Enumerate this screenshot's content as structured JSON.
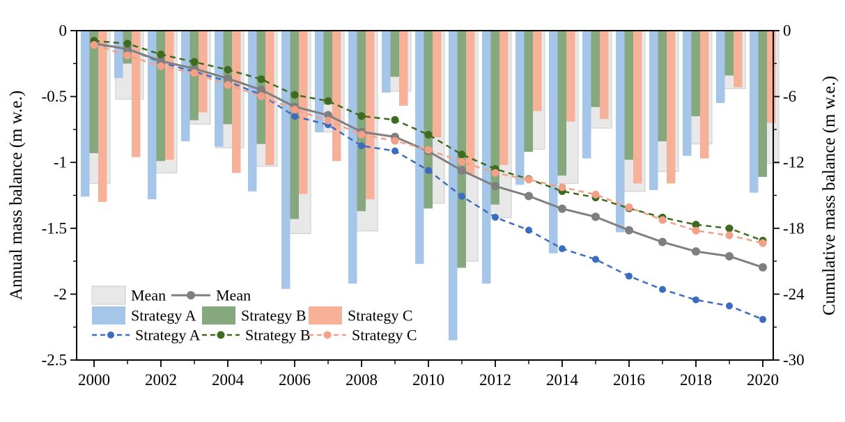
{
  "figure": {
    "left_axis_label": "Annual mass balance (m w.e.)",
    "right_axis_label": "Cumulative mass balance (m w.e.)"
  },
  "legend": {
    "mean_bar": "Mean",
    "mean_line": "Mean",
    "bar_a": "Strategy A",
    "bar_b": "Strategy B",
    "bar_c": "Strategy C",
    "line_a": "Strategy A",
    "line_b": "Strategy B",
    "line_c": "Strategy C"
  },
  "colors": {
    "bar_mean": "#E8E8E8",
    "bar_mean_border": "#D2D2D2",
    "bar_a": "#A5C5E9",
    "bar_b": "#86A87E",
    "bar_c": "#F6B198",
    "line_mean": "#7F7F7F",
    "line_a": "#3D6BBF",
    "line_b": "#3E6B1E",
    "line_c": "#F2A088",
    "axis": "#000000"
  },
  "chart_data": {
    "type": "bar",
    "title": "",
    "xlabel": "",
    "ylabel_left": "Annual mass balance (m w.e.)",
    "ylabel_right": "Cumulative mass balance (m w.e.)",
    "grid": false,
    "legend_position": "lower left",
    "years": [
      2000,
      2001,
      2002,
      2003,
      2004,
      2005,
      2006,
      2007,
      2008,
      2009,
      2010,
      2011,
      2012,
      2013,
      2014,
      2015,
      2016,
      2017,
      2018,
      2019,
      2020
    ],
    "bar_series": [
      {
        "name": "Mean",
        "values": [
          -1.16,
          -0.52,
          -1.08,
          -0.71,
          -0.89,
          -1.03,
          -1.54,
          -0.77,
          -1.52,
          -0.46,
          -1.31,
          -1.75,
          -1.42,
          -0.9,
          -1.16,
          -0.74,
          -1.22,
          -1.07,
          -0.86,
          -0.44,
          -1.01
        ]
      },
      {
        "name": "Strategy A",
        "values": [
          -1.26,
          -0.36,
          -1.28,
          -0.84,
          -0.88,
          -1.22,
          -1.96,
          -0.77,
          -1.92,
          -0.47,
          -1.77,
          -2.35,
          -1.92,
          -1.17,
          -1.69,
          -0.97,
          -1.53,
          -1.21,
          -0.95,
          -0.55,
          -1.23
        ]
      },
      {
        "name": "Strategy B",
        "values": [
          -0.93,
          -0.25,
          -0.99,
          -0.68,
          -0.71,
          -0.86,
          -1.43,
          -0.56,
          -1.37,
          -0.35,
          -1.35,
          -1.8,
          -1.32,
          -0.92,
          -1.1,
          -0.58,
          -0.98,
          -0.84,
          -0.65,
          -0.34,
          -1.11
        ]
      },
      {
        "name": "Strategy C",
        "values": [
          -1.3,
          -0.96,
          -0.98,
          -0.62,
          -1.08,
          -1.02,
          -1.24,
          -0.99,
          -1.28,
          -0.57,
          -0.81,
          -1.09,
          -1.02,
          -0.61,
          -0.69,
          -0.67,
          -1.16,
          -1.16,
          -0.97,
          -0.43,
          -0.7
        ]
      }
    ],
    "line_series": [
      {
        "name": "Mean",
        "values": [
          -1.16,
          -1.68,
          -2.76,
          -3.47,
          -4.36,
          -5.39,
          -6.93,
          -7.7,
          -9.22,
          -9.68,
          -10.99,
          -12.74,
          -14.16,
          -15.06,
          -16.22,
          -16.96,
          -18.18,
          -19.25,
          -20.11,
          -20.55,
          -21.56
        ]
      },
      {
        "name": "Strategy A",
        "values": [
          -1.26,
          -1.62,
          -2.9,
          -3.74,
          -4.62,
          -5.84,
          -7.8,
          -8.57,
          -10.49,
          -10.96,
          -12.73,
          -15.08,
          -17.0,
          -18.17,
          -19.86,
          -20.83,
          -22.36,
          -23.57,
          -24.52,
          -25.07,
          -26.3
        ]
      },
      {
        "name": "Strategy B",
        "values": [
          -0.93,
          -1.18,
          -2.17,
          -2.85,
          -3.56,
          -4.42,
          -5.85,
          -6.41,
          -7.78,
          -8.13,
          -9.48,
          -11.28,
          -12.6,
          -13.52,
          -14.62,
          -15.2,
          -16.18,
          -17.02,
          -17.67,
          -18.01,
          -19.12
        ]
      },
      {
        "name": "Strategy C",
        "values": [
          -1.3,
          -2.26,
          -3.24,
          -3.86,
          -4.94,
          -5.96,
          -7.2,
          -8.19,
          -9.47,
          -10.04,
          -10.85,
          -11.94,
          -12.96,
          -13.57,
          -14.26,
          -14.93,
          -16.09,
          -17.25,
          -18.22,
          -18.65,
          -19.35
        ]
      }
    ],
    "left_axis": {
      "min": -2.5,
      "max": 0,
      "tick_values": [
        0,
        -0.5,
        -1,
        -1.5,
        -2,
        -2.5
      ],
      "tick_labels": [
        "0",
        "-0.5",
        "-1",
        "-1.5",
        "-2",
        "-2.5"
      ],
      "minor_step": 0.25
    },
    "right_axis": {
      "min": -30,
      "max": 0,
      "tick_values": [
        0,
        -6,
        -12,
        -18,
        -24,
        -30
      ],
      "tick_labels": [
        "0",
        "-6",
        "-12",
        "-18",
        "-24",
        "-30"
      ],
      "minor_step": 3
    },
    "x_axis": {
      "labeled_years": [
        2000,
        2002,
        2004,
        2006,
        2008,
        2010,
        2012,
        2014,
        2016,
        2018,
        2020
      ]
    }
  }
}
